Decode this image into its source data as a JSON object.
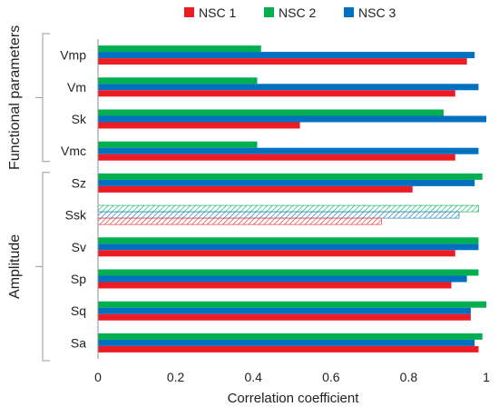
{
  "chart_data": {
    "type": "bar",
    "orientation": "horizontal",
    "xlabel": "Correlation coefficient",
    "xlim": [
      0,
      1
    ],
    "xticks": [
      "0",
      "0.2",
      "0.4",
      "0.6",
      "0.8",
      "1"
    ],
    "grid": false,
    "legend_position": "top",
    "series": [
      {
        "name": "NSC 1",
        "color": "#ed1c24"
      },
      {
        "name": "NSC 2",
        "color": "#00b050"
      },
      {
        "name": "NSC 3",
        "color": "#0070c0"
      }
    ],
    "groups": [
      {
        "label": "Functional parameters",
        "categories": [
          "Vmp",
          "Vm",
          "Sk",
          "Vmc"
        ]
      },
      {
        "label": "Amplitude",
        "categories": [
          "Sz",
          "Ssk",
          "Sv",
          "Sp",
          "Sq",
          "Sa"
        ]
      }
    ],
    "categories": [
      "Vmp",
      "Vm",
      "Sk",
      "Vmc",
      "Sz",
      "Ssk",
      "Sv",
      "Sp",
      "Sq",
      "Sa"
    ],
    "values": {
      "NSC 1": [
        0.95,
        0.92,
        0.52,
        0.92,
        0.81,
        0.73,
        0.92,
        0.91,
        0.96,
        0.98
      ],
      "NSC 2": [
        0.42,
        0.41,
        0.89,
        0.41,
        0.99,
        0.98,
        0.98,
        0.98,
        1.0,
        0.99
      ],
      "NSC 3": [
        0.97,
        0.98,
        1.0,
        0.98,
        0.97,
        0.93,
        0.98,
        0.95,
        0.96,
        0.97
      ]
    },
    "hatched_categories": [
      "Ssk"
    ]
  }
}
